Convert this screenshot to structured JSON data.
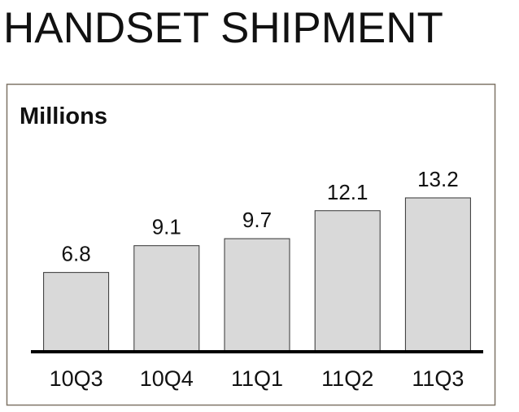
{
  "chart_data": {
    "type": "bar",
    "title": "HANDSET SHIPMENT",
    "subtitle": "Millions",
    "categories": [
      "10Q3",
      "10Q4",
      "11Q1",
      "11Q2",
      "11Q3"
    ],
    "values": [
      6.8,
      9.1,
      9.7,
      12.1,
      13.2
    ],
    "color": "#d9d9d9"
  }
}
